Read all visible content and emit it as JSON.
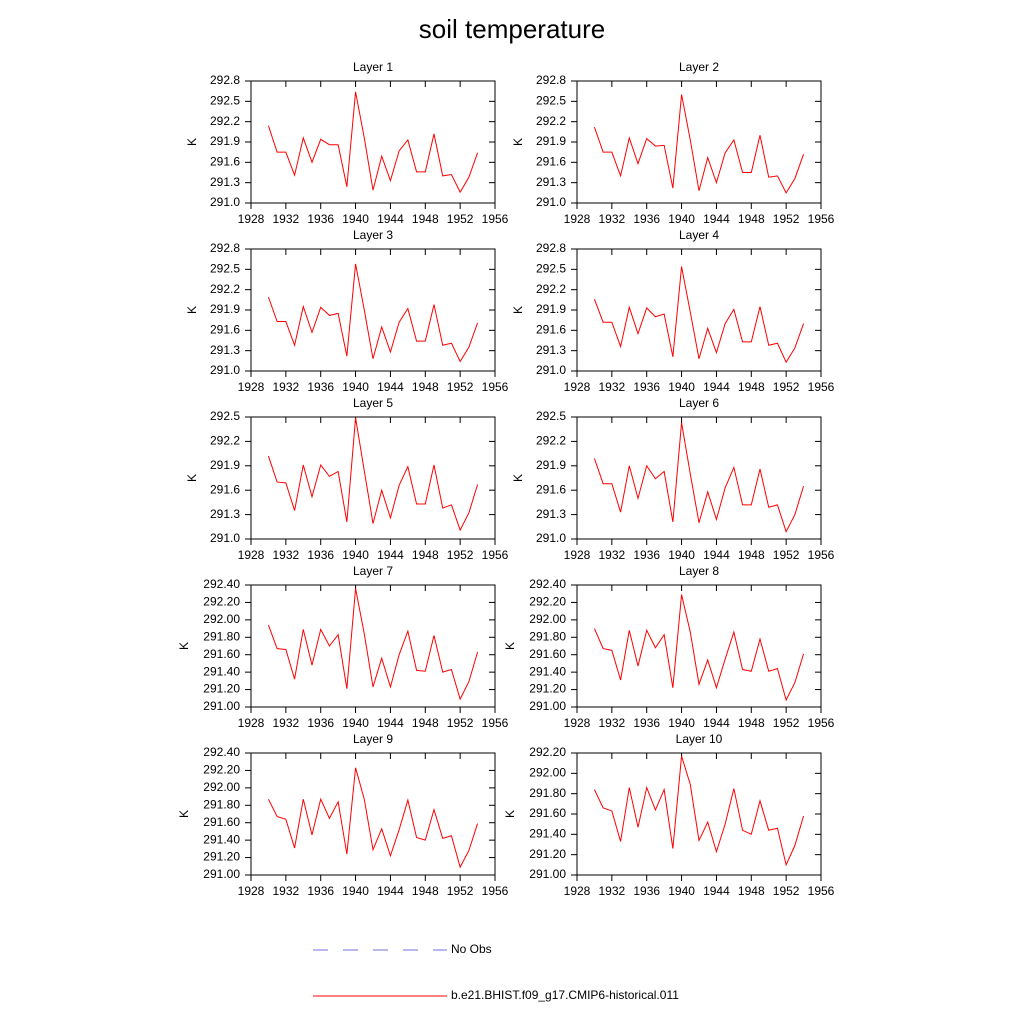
{
  "title": "soil temperature",
  "chart_data": [
    {
      "type": "line",
      "title": "Layer 1",
      "ylabel": "K",
      "x": [
        1930,
        1931,
        1932,
        1933,
        1934,
        1935,
        1936,
        1937,
        1938,
        1939,
        1940,
        1941,
        1942,
        1943,
        1944,
        1945,
        1946,
        1947,
        1948,
        1949,
        1950,
        1951,
        1952,
        1953,
        1954
      ],
      "series": [
        {
          "color": "#ff0000",
          "values": [
            292.14,
            291.75,
            291.75,
            291.41,
            291.96,
            291.6,
            291.94,
            291.86,
            291.86,
            291.24,
            292.64,
            291.96,
            291.19,
            291.69,
            291.33,
            291.77,
            291.93,
            291.46,
            291.46,
            292.02,
            291.4,
            291.42,
            291.16,
            291.38,
            291.74
          ]
        }
      ],
      "xlim": [
        1928,
        1956
      ],
      "xticks": [
        1928,
        1932,
        1936,
        1940,
        1944,
        1948,
        1952,
        1956
      ],
      "ylim": [
        291,
        292.8
      ],
      "yticks": [
        {
          "value": 291,
          "label": "291.0"
        },
        291.3,
        291.6,
        291.9,
        292.2,
        292.5,
        292.8
      ]
    },
    {
      "type": "line",
      "title": "Layer 2",
      "ylabel": "K",
      "x": [
        1930,
        1931,
        1932,
        1933,
        1934,
        1935,
        1936,
        1937,
        1938,
        1939,
        1940,
        1941,
        1942,
        1943,
        1944,
        1945,
        1946,
        1947,
        1948,
        1949,
        1950,
        1951,
        1952,
        1953,
        1954
      ],
      "series": [
        {
          "color": "#ff0000",
          "values": [
            292.12,
            291.75,
            291.75,
            291.4,
            291.96,
            291.58,
            291.95,
            291.84,
            291.85,
            291.22,
            292.6,
            291.93,
            291.18,
            291.67,
            291.3,
            291.74,
            291.93,
            291.45,
            291.45,
            292.0,
            291.38,
            291.4,
            291.15,
            291.36,
            291.72
          ]
        }
      ],
      "xlim": [
        1928,
        1956
      ],
      "xticks": [
        1928,
        1932,
        1936,
        1940,
        1944,
        1948,
        1952,
        1956
      ],
      "ylim": [
        291,
        292.8
      ],
      "yticks": [
        {
          "value": 291,
          "label": "291.0"
        },
        291.3,
        291.6,
        291.9,
        292.2,
        292.5,
        292.8
      ]
    },
    {
      "type": "line",
      "title": "Layer 3",
      "ylabel": "K",
      "x": [
        1930,
        1931,
        1932,
        1933,
        1934,
        1935,
        1936,
        1937,
        1938,
        1939,
        1940,
        1941,
        1942,
        1943,
        1944,
        1945,
        1946,
        1947,
        1948,
        1949,
        1950,
        1951,
        1952,
        1953,
        1954
      ],
      "series": [
        {
          "color": "#ff0000",
          "values": [
            292.09,
            291.73,
            291.73,
            291.38,
            291.95,
            291.57,
            291.94,
            291.82,
            291.85,
            291.22,
            292.58,
            291.9,
            291.18,
            291.65,
            291.28,
            291.72,
            291.92,
            291.44,
            291.44,
            291.98,
            291.38,
            291.41,
            291.14,
            291.35,
            291.71
          ]
        }
      ],
      "xlim": [
        1928,
        1956
      ],
      "xticks": [
        1928,
        1932,
        1936,
        1940,
        1944,
        1948,
        1952,
        1956
      ],
      "ylim": [
        291,
        292.8
      ],
      "yticks": [
        {
          "value": 291,
          "label": "291.0"
        },
        291.3,
        291.6,
        291.9,
        292.2,
        292.5,
        292.8
      ]
    },
    {
      "type": "line",
      "title": "Layer 4",
      "ylabel": "K",
      "x": [
        1930,
        1931,
        1932,
        1933,
        1934,
        1935,
        1936,
        1937,
        1938,
        1939,
        1940,
        1941,
        1942,
        1943,
        1944,
        1945,
        1946,
        1947,
        1948,
        1949,
        1950,
        1951,
        1952,
        1953,
        1954
      ],
      "series": [
        {
          "color": "#ff0000",
          "values": [
            292.06,
            291.72,
            291.72,
            291.36,
            291.94,
            291.55,
            291.93,
            291.8,
            291.84,
            291.21,
            292.54,
            291.87,
            291.18,
            291.63,
            291.27,
            291.7,
            291.91,
            291.43,
            291.43,
            291.95,
            291.38,
            291.41,
            291.13,
            291.34,
            291.7
          ]
        }
      ],
      "xlim": [
        1928,
        1956
      ],
      "xticks": [
        1928,
        1932,
        1936,
        1940,
        1944,
        1948,
        1952,
        1956
      ],
      "ylim": [
        291,
        292.8
      ],
      "yticks": [
        {
          "value": 291,
          "label": "291.0"
        },
        291.3,
        291.6,
        291.9,
        292.2,
        292.5,
        292.8
      ]
    },
    {
      "type": "line",
      "title": "Layer 5",
      "ylabel": "K",
      "x": [
        1930,
        1931,
        1932,
        1933,
        1934,
        1935,
        1936,
        1937,
        1938,
        1939,
        1940,
        1941,
        1942,
        1943,
        1944,
        1945,
        1946,
        1947,
        1948,
        1949,
        1950,
        1951,
        1952,
        1953,
        1954
      ],
      "series": [
        {
          "color": "#ff0000",
          "values": [
            292.02,
            291.7,
            291.69,
            291.35,
            291.91,
            291.52,
            291.91,
            291.77,
            291.83,
            291.21,
            292.49,
            291.84,
            291.19,
            291.6,
            291.26,
            291.66,
            291.89,
            291.43,
            291.43,
            291.91,
            291.38,
            291.42,
            291.11,
            291.32,
            291.67
          ]
        }
      ],
      "xlim": [
        1928,
        1956
      ],
      "xticks": [
        1928,
        1932,
        1936,
        1940,
        1944,
        1948,
        1952,
        1956
      ],
      "ylim": [
        291,
        292.5
      ],
      "yticks": [
        {
          "value": 291,
          "label": "291.0"
        },
        291.3,
        291.6,
        291.9,
        292.2,
        292.5
      ]
    },
    {
      "type": "line",
      "title": "Layer 6",
      "ylabel": "K",
      "x": [
        1930,
        1931,
        1932,
        1933,
        1934,
        1935,
        1936,
        1937,
        1938,
        1939,
        1940,
        1941,
        1942,
        1943,
        1944,
        1945,
        1946,
        1947,
        1948,
        1949,
        1950,
        1951,
        1952,
        1953,
        1954
      ],
      "series": [
        {
          "color": "#ff0000",
          "values": [
            291.99,
            291.68,
            291.68,
            291.33,
            291.9,
            291.5,
            291.9,
            291.74,
            291.83,
            291.21,
            292.43,
            291.8,
            291.2,
            291.58,
            291.24,
            291.63,
            291.88,
            291.42,
            291.42,
            291.86,
            291.39,
            291.42,
            291.09,
            291.3,
            291.65
          ]
        }
      ],
      "xlim": [
        1928,
        1956
      ],
      "xticks": [
        1928,
        1932,
        1936,
        1940,
        1944,
        1948,
        1952,
        1956
      ],
      "ylim": [
        291,
        292.5
      ],
      "yticks": [
        {
          "value": 291,
          "label": "291.0"
        },
        291.3,
        291.6,
        291.9,
        292.2,
        292.5
      ]
    },
    {
      "type": "line",
      "title": "Layer 7",
      "ylabel": "K",
      "x": [
        1930,
        1931,
        1932,
        1933,
        1934,
        1935,
        1936,
        1937,
        1938,
        1939,
        1940,
        1941,
        1942,
        1943,
        1944,
        1945,
        1946,
        1947,
        1948,
        1949,
        1950,
        1951,
        1952,
        1953,
        1954
      ],
      "series": [
        {
          "color": "#ff0000",
          "values": [
            291.94,
            291.67,
            291.66,
            291.32,
            291.89,
            291.48,
            291.89,
            291.7,
            291.83,
            291.21,
            292.36,
            291.84,
            291.23,
            291.56,
            291.23,
            291.6,
            291.87,
            291.42,
            291.41,
            291.82,
            291.4,
            291.43,
            291.09,
            291.29,
            291.63
          ]
        }
      ],
      "xlim": [
        1928,
        1956
      ],
      "xticks": [
        1928,
        1932,
        1936,
        1940,
        1944,
        1948,
        1952,
        1956
      ],
      "ylim": [
        291,
        292.4
      ],
      "yticks": [
        {
          "value": 291,
          "label": "291.00"
        },
        {
          "value": 291.2,
          "label": "291.20"
        },
        {
          "value": 291.4,
          "label": "291.40"
        },
        {
          "value": 291.6,
          "label": "291.60"
        },
        {
          "value": 291.8,
          "label": "291.80"
        },
        {
          "value": 292,
          "label": "292.00"
        },
        {
          "value": 292.2,
          "label": "292.20"
        },
        {
          "value": 292.4,
          "label": "292.40"
        }
      ]
    },
    {
      "type": "line",
      "title": "Layer 8",
      "ylabel": "K",
      "x": [
        1930,
        1931,
        1932,
        1933,
        1934,
        1935,
        1936,
        1937,
        1938,
        1939,
        1940,
        1941,
        1942,
        1943,
        1944,
        1945,
        1946,
        1947,
        1948,
        1949,
        1950,
        1951,
        1952,
        1953,
        1954
      ],
      "series": [
        {
          "color": "#ff0000",
          "values": [
            291.9,
            291.67,
            291.65,
            291.31,
            291.88,
            291.47,
            291.88,
            291.68,
            291.83,
            291.22,
            292.29,
            291.86,
            291.26,
            291.54,
            291.22,
            291.55,
            291.86,
            291.43,
            291.41,
            291.78,
            291.41,
            291.44,
            291.08,
            291.28,
            291.61
          ]
        }
      ],
      "xlim": [
        1928,
        1956
      ],
      "xticks": [
        1928,
        1932,
        1936,
        1940,
        1944,
        1948,
        1952,
        1956
      ],
      "ylim": [
        291,
        292.4
      ],
      "yticks": [
        {
          "value": 291,
          "label": "291.00"
        },
        {
          "value": 291.2,
          "label": "291.20"
        },
        {
          "value": 291.4,
          "label": "291.40"
        },
        {
          "value": 291.6,
          "label": "291.60"
        },
        {
          "value": 291.8,
          "label": "291.80"
        },
        {
          "value": 292,
          "label": "292.00"
        },
        {
          "value": 292.2,
          "label": "292.20"
        },
        {
          "value": 292.4,
          "label": "292.40"
        }
      ]
    },
    {
      "type": "line",
      "title": "Layer 9",
      "ylabel": "K",
      "x": [
        1930,
        1931,
        1932,
        1933,
        1934,
        1935,
        1936,
        1937,
        1938,
        1939,
        1940,
        1941,
        1942,
        1943,
        1944,
        1945,
        1946,
        1947,
        1948,
        1949,
        1950,
        1951,
        1952,
        1953,
        1954
      ],
      "series": [
        {
          "color": "#ff0000",
          "values": [
            291.87,
            291.67,
            291.64,
            291.31,
            291.87,
            291.46,
            291.87,
            291.65,
            291.84,
            291.24,
            292.23,
            291.87,
            291.29,
            291.53,
            291.22,
            291.52,
            291.86,
            291.43,
            291.4,
            291.75,
            291.42,
            291.45,
            291.09,
            291.28,
            291.59
          ]
        }
      ],
      "xlim": [
        1928,
        1956
      ],
      "xticks": [
        1928,
        1932,
        1936,
        1940,
        1944,
        1948,
        1952,
        1956
      ],
      "ylim": [
        291,
        292.4
      ],
      "yticks": [
        {
          "value": 291,
          "label": "291.00"
        },
        {
          "value": 291.2,
          "label": "291.20"
        },
        {
          "value": 291.4,
          "label": "291.40"
        },
        {
          "value": 291.6,
          "label": "291.60"
        },
        {
          "value": 291.8,
          "label": "291.80"
        },
        {
          "value": 292,
          "label": "292.00"
        },
        {
          "value": 292.2,
          "label": "292.20"
        },
        {
          "value": 292.4,
          "label": "292.40"
        }
      ]
    },
    {
      "type": "line",
      "title": "Layer 10",
      "ylabel": "K",
      "x": [
        1930,
        1931,
        1932,
        1933,
        1934,
        1935,
        1936,
        1937,
        1938,
        1939,
        1940,
        1941,
        1942,
        1943,
        1944,
        1945,
        1946,
        1947,
        1948,
        1949,
        1950,
        1951,
        1952,
        1953,
        1954
      ],
      "series": [
        {
          "color": "#ff0000",
          "values": [
            291.84,
            291.66,
            291.63,
            291.33,
            291.86,
            291.47,
            291.86,
            291.64,
            291.84,
            291.26,
            292.17,
            291.89,
            291.34,
            291.52,
            291.23,
            291.5,
            291.85,
            291.44,
            291.4,
            291.73,
            291.44,
            291.46,
            291.1,
            291.29,
            291.58
          ]
        }
      ],
      "xlim": [
        1928,
        1956
      ],
      "xticks": [
        1928,
        1932,
        1936,
        1940,
        1944,
        1948,
        1952,
        1956
      ],
      "ylim": [
        291,
        292.2
      ],
      "yticks": [
        {
          "value": 291,
          "label": "291.00"
        },
        {
          "value": 291.2,
          "label": "291.20"
        },
        {
          "value": 291.4,
          "label": "291.40"
        },
        {
          "value": 291.6,
          "label": "291.60"
        },
        {
          "value": 291.8,
          "label": "291.80"
        },
        {
          "value": 292,
          "label": "292.00"
        },
        {
          "value": 292.2,
          "label": "292.20"
        }
      ]
    }
  ],
  "legend": [
    {
      "name": "No Obs",
      "color": "#7070d8",
      "dash": true
    },
    {
      "name": "b.e21.BHIST.f09_g17.CMIP6-historical.011",
      "color": "#ff0000",
      "dash": false
    }
  ]
}
